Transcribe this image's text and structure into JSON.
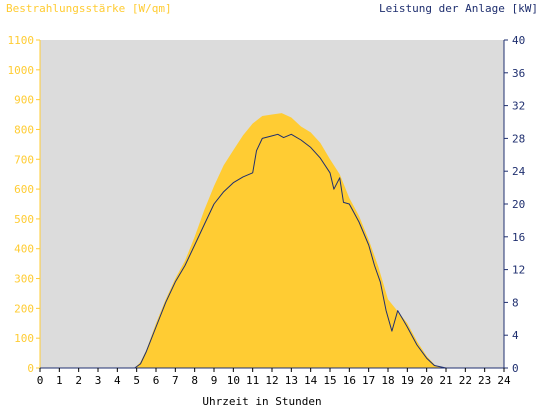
{
  "chart_data": {
    "type": "area",
    "left_axis": {
      "label": "Bestrahlungsstärke [W/qm]",
      "min": 0,
      "max": 1100,
      "ticks": [
        0,
        100,
        200,
        300,
        400,
        500,
        600,
        700,
        800,
        900,
        1000,
        1100
      ],
      "color": "#FFCC33"
    },
    "right_axis": {
      "label": "Leistung der Anlage [kW]",
      "min": 0,
      "max": 40,
      "ticks": [
        0,
        4,
        8,
        12,
        16,
        20,
        24,
        28,
        32,
        36,
        40
      ],
      "color": "#1F2F6F"
    },
    "x_axis": {
      "label": "Uhrzeit in Stunden",
      "min": 0,
      "max": 24,
      "ticks": [
        0,
        1,
        2,
        3,
        4,
        5,
        6,
        7,
        8,
        9,
        10,
        11,
        12,
        13,
        14,
        15,
        16,
        17,
        18,
        19,
        20,
        21,
        22,
        23,
        24
      ]
    },
    "grid": false,
    "series": [
      {
        "name": "Bestrahlungsstärke [W/qm]",
        "axis": "left",
        "style": "area",
        "color": "#FFCC33",
        "x": [
          0,
          4.9,
          5.2,
          5.5,
          6.0,
          6.5,
          7.0,
          7.5,
          8.0,
          8.5,
          9.0,
          9.5,
          10.0,
          10.5,
          11.0,
          11.5,
          12.0,
          12.5,
          13.0,
          13.5,
          14.0,
          14.5,
          15.0,
          15.5,
          16.0,
          16.5,
          17.0,
          17.5,
          18.0,
          18.5,
          19.0,
          19.5,
          20.0,
          20.5,
          21.0,
          24
        ],
        "y": [
          0,
          0,
          20,
          60,
          150,
          230,
          300,
          360,
          440,
          530,
          610,
          680,
          730,
          780,
          820,
          845,
          850,
          855,
          840,
          810,
          790,
          755,
          700,
          650,
          570,
          510,
          430,
          340,
          230,
          190,
          150,
          90,
          40,
          5,
          0,
          0
        ]
      },
      {
        "name": "Leistung der Anlage [kW]",
        "axis": "right",
        "style": "line",
        "color": "#1F2F6F",
        "x": [
          0,
          4.9,
          5.2,
          5.5,
          6.0,
          6.5,
          7.0,
          7.5,
          8.0,
          8.5,
          9.0,
          9.5,
          10.0,
          10.5,
          11.0,
          11.2,
          11.5,
          12.0,
          12.3,
          12.6,
          13.0,
          13.5,
          14.0,
          14.5,
          15.0,
          15.2,
          15.5,
          15.7,
          16.0,
          16.5,
          17.0,
          17.3,
          17.6,
          17.9,
          18.2,
          18.5,
          18.8,
          19.0,
          19.5,
          20.0,
          20.4,
          21.0,
          24
        ],
        "y": [
          0,
          0,
          0.5,
          2.0,
          5.0,
          8.0,
          10.5,
          12.5,
          15.0,
          17.5,
          20.0,
          21.5,
          22.6,
          23.3,
          23.8,
          26.5,
          28.0,
          28.3,
          28.5,
          28.1,
          28.5,
          27.8,
          26.9,
          25.6,
          23.8,
          21.8,
          23.2,
          20.2,
          20.0,
          17.8,
          15.0,
          12.5,
          10.5,
          7.0,
          4.5,
          7.0,
          5.8,
          5.0,
          2.8,
          1.2,
          0.3,
          0,
          0
        ]
      }
    ]
  }
}
